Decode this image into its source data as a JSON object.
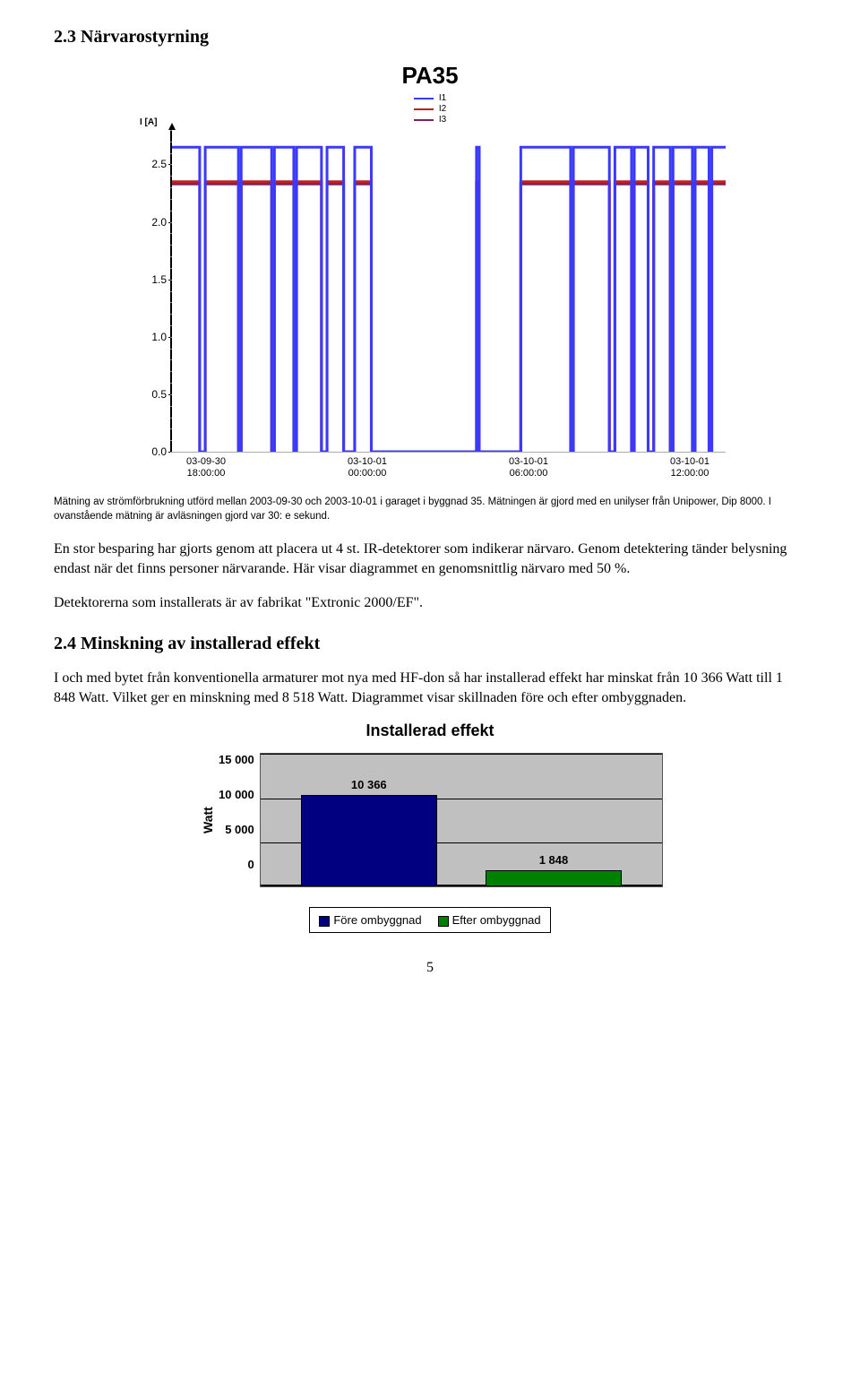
{
  "section1": {
    "heading": "2.3 Närvarostyrning"
  },
  "chart1": {
    "title": "PA35",
    "yaxis_label": "I [A]",
    "legend": [
      {
        "label": "I1",
        "color": "#3a3aff"
      },
      {
        "label": "I2",
        "color": "#c02020"
      },
      {
        "label": "I3",
        "color": "#802060"
      }
    ],
    "ylim": [
      0.0,
      2.8
    ],
    "yticks": [
      "0.0",
      "0.5",
      "1.0",
      "1.5",
      "2.0",
      "2.5"
    ],
    "ytick_values": [
      0.0,
      0.5,
      1.0,
      1.5,
      2.0,
      2.5
    ],
    "minor_step": 0.1,
    "xticks": [
      {
        "line1": "03-09-30",
        "line2": "18:00:00"
      },
      {
        "line1": "03-10-01",
        "line2": "00:00:00"
      },
      {
        "line1": "03-10-01",
        "line2": "06:00:00"
      },
      {
        "line1": "03-10-01",
        "line2": "12:00:00"
      }
    ],
    "series": {
      "I1_high": 2.65,
      "I23_high": 2.35,
      "low": 0.0,
      "segments": [
        {
          "x0": 0.0,
          "x1": 0.05,
          "state": "high"
        },
        {
          "x0": 0.05,
          "x1": 0.06,
          "state": "low"
        },
        {
          "x0": 0.06,
          "x1": 0.12,
          "state": "high"
        },
        {
          "x0": 0.12,
          "x1": 0.125,
          "state": "low"
        },
        {
          "x0": 0.125,
          "x1": 0.18,
          "state": "high"
        },
        {
          "x0": 0.18,
          "x1": 0.185,
          "state": "low"
        },
        {
          "x0": 0.185,
          "x1": 0.22,
          "state": "high"
        },
        {
          "x0": 0.22,
          "x1": 0.225,
          "state": "low"
        },
        {
          "x0": 0.225,
          "x1": 0.27,
          "state": "high"
        },
        {
          "x0": 0.27,
          "x1": 0.28,
          "state": "low"
        },
        {
          "x0": 0.28,
          "x1": 0.31,
          "state": "high"
        },
        {
          "x0": 0.31,
          "x1": 0.33,
          "state": "low"
        },
        {
          "x0": 0.33,
          "x1": 0.36,
          "state": "high"
        },
        {
          "x0": 0.36,
          "x1": 0.55,
          "state": "low"
        },
        {
          "x0": 0.55,
          "x1": 0.555,
          "state": "high"
        },
        {
          "x0": 0.555,
          "x1": 0.63,
          "state": "low"
        },
        {
          "x0": 0.63,
          "x1": 0.72,
          "state": "high"
        },
        {
          "x0": 0.72,
          "x1": 0.725,
          "state": "low"
        },
        {
          "x0": 0.725,
          "x1": 0.79,
          "state": "high"
        },
        {
          "x0": 0.79,
          "x1": 0.8,
          "state": "low"
        },
        {
          "x0": 0.8,
          "x1": 0.83,
          "state": "high"
        },
        {
          "x0": 0.83,
          "x1": 0.835,
          "state": "low"
        },
        {
          "x0": 0.835,
          "x1": 0.86,
          "state": "high"
        },
        {
          "x0": 0.86,
          "x1": 0.87,
          "state": "low"
        },
        {
          "x0": 0.87,
          "x1": 0.9,
          "state": "high"
        },
        {
          "x0": 0.9,
          "x1": 0.905,
          "state": "low"
        },
        {
          "x0": 0.905,
          "x1": 0.94,
          "state": "high"
        },
        {
          "x0": 0.94,
          "x1": 0.945,
          "state": "low"
        },
        {
          "x0": 0.945,
          "x1": 0.97,
          "state": "high"
        },
        {
          "x0": 0.97,
          "x1": 0.975,
          "state": "low"
        },
        {
          "x0": 0.975,
          "x1": 1.0,
          "state": "high"
        }
      ]
    },
    "line_width": 1,
    "background": "#ffffff"
  },
  "caption": "Mätning av strömförbrukning utförd mellan 2003-09-30 och 2003-10-01 i garaget i byggnad 35. Mätningen är gjord med en unilyser från Unipower, Dip 8000. I ovanstående mätning är avläsningen gjord var 30: e sekund.",
  "para1": "En stor besparing har gjorts genom att placera ut 4 st. IR-detektorer som indikerar närvaro. Genom detektering tänder belysning endast när det finns personer närvarande. Här visar diagrammet en genomsnittlig närvaro med 50 %.",
  "para2": "Detektorerna som installerats är av fabrikat \"Extronic 2000/EF\".",
  "section2": {
    "heading": "2.4 Minskning av installerad effekt"
  },
  "para3": "I och med bytet från konventionella armaturer mot nya med HF-don så har installerad effekt har minskat från 10 366 Watt till 1 848 Watt. Vilket ger en minskning med 8 518 Watt. Diagrammet visar skillnaden före och efter ombyggnaden.",
  "chart2": {
    "title": "Installerad effekt",
    "ylabel": "Watt",
    "ylim": [
      0,
      15000
    ],
    "yticks": [
      "15 000",
      "10 000",
      "5 000",
      "0"
    ],
    "ytick_values": [
      15000,
      10000,
      5000,
      0
    ],
    "grid_values": [
      5000,
      10000,
      15000
    ],
    "background": "#c0c0c0",
    "grid_color": "#000000",
    "bars": [
      {
        "label": "10 366",
        "value": 10366,
        "color": "#000080",
        "legend": "Före ombyggnad",
        "x": 0.1
      },
      {
        "label": "1 848",
        "value": 1848,
        "color": "#008000",
        "legend": "Efter ombyggnad",
        "x": 0.56
      }
    ]
  },
  "page_number": "5"
}
